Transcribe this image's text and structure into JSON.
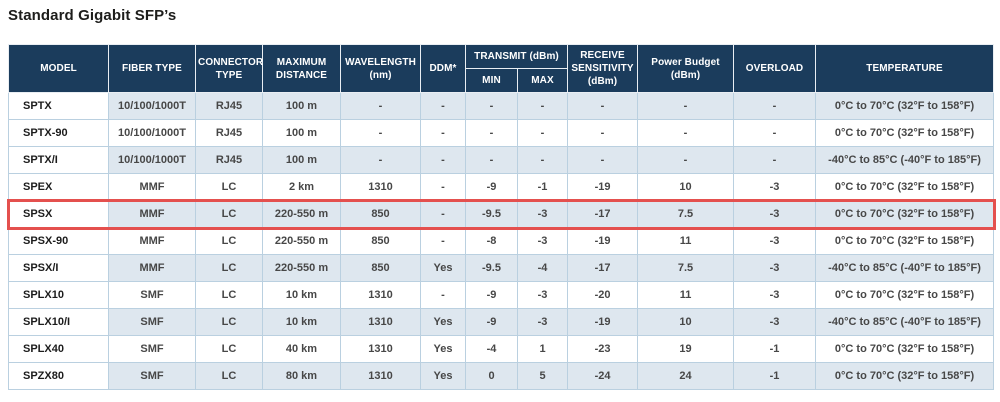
{
  "title": "Standard Gigabit SFP’s",
  "colors": {
    "header_bg": "#1b3c5c",
    "shaded_row_bg": "#dee7ef",
    "cell_border": "#bad0e0",
    "highlight_border": "#e4504e",
    "header_text": "#ffffff",
    "data_text": "#474747"
  },
  "table": {
    "headers": {
      "model": "MODEL",
      "fiber_type": "FIBER TYPE",
      "connector_type": "CONNECTOR TYPE",
      "maximum_distance": "MAXIMUM DISTANCE",
      "wavelength": "WAVELENGTH (nm)",
      "ddm": "DDM*",
      "transmit_group": "TRANSMIT (dBm)",
      "transmit_min": "MIN",
      "transmit_max": "MAX",
      "receive_sensitivity": "RECEIVE SENSITIVITY (dBm)",
      "power_budget": "Power Budget (dBm)",
      "overload": "OVERLOAD",
      "temperature": "TEMPERATURE"
    },
    "rows": [
      {
        "model": "SPTX",
        "fiber_type": "10/100/1000T",
        "connector_type": "RJ45",
        "max_distance": "100 m",
        "wavelength": "-",
        "ddm": "-",
        "tx_min": "-",
        "tx_max": "-",
        "rx_sensitivity": "-",
        "power_budget": "-",
        "overload": "-",
        "temperature": "0°C to 70°C (32°F to 158°F)"
      },
      {
        "model": "SPTX-90",
        "fiber_type": "10/100/1000T",
        "connector_type": "RJ45",
        "max_distance": "100 m",
        "wavelength": "-",
        "ddm": "-",
        "tx_min": "-",
        "tx_max": "-",
        "rx_sensitivity": "-",
        "power_budget": "-",
        "overload": "-",
        "temperature": "0°C to 70°C (32°F to 158°F)"
      },
      {
        "model": "SPTX/I",
        "fiber_type": "10/100/1000T",
        "connector_type": "RJ45",
        "max_distance": "100 m",
        "wavelength": "-",
        "ddm": "-",
        "tx_min": "-",
        "tx_max": "-",
        "rx_sensitivity": "-",
        "power_budget": "-",
        "overload": "-",
        "temperature": "-40°C to 85°C (-40°F to 185°F)"
      },
      {
        "model": "SPEX",
        "fiber_type": "MMF",
        "connector_type": "LC",
        "max_distance": "2 km",
        "wavelength": "1310",
        "ddm": "-",
        "tx_min": "-9",
        "tx_max": "-1",
        "rx_sensitivity": "-19",
        "power_budget": "10",
        "overload": "-3",
        "temperature": "0°C to 70°C (32°F to 158°F)"
      },
      {
        "model": "SPSX",
        "fiber_type": "MMF",
        "connector_type": "LC",
        "max_distance": "220-550 m",
        "wavelength": "850",
        "ddm": "-",
        "tx_min": "-9.5",
        "tx_max": "-3",
        "rx_sensitivity": "-17",
        "power_budget": "7.5",
        "overload": "-3",
        "temperature": "0°C to 70°C (32°F to 158°F)"
      },
      {
        "model": "SPSX-90",
        "fiber_type": "MMF",
        "connector_type": "LC",
        "max_distance": "220-550 m",
        "wavelength": "850",
        "ddm": "-",
        "tx_min": "-8",
        "tx_max": "-3",
        "rx_sensitivity": "-19",
        "power_budget": "11",
        "overload": "-3",
        "temperature": "0°C to 70°C (32°F to 158°F)"
      },
      {
        "model": "SPSX/I",
        "fiber_type": "MMF",
        "connector_type": "LC",
        "max_distance": "220-550 m",
        "wavelength": "850",
        "ddm": "Yes",
        "tx_min": "-9.5",
        "tx_max": "-4",
        "rx_sensitivity": "-17",
        "power_budget": "7.5",
        "overload": "-3",
        "temperature": "-40°C to 85°C (-40°F to 185°F)"
      },
      {
        "model": "SPLX10",
        "fiber_type": "SMF",
        "connector_type": "LC",
        "max_distance": "10 km",
        "wavelength": "1310",
        "ddm": "-",
        "tx_min": "-9",
        "tx_max": "-3",
        "rx_sensitivity": "-20",
        "power_budget": "11",
        "overload": "-3",
        "temperature": "0°C to 70°C (32°F to 158°F)"
      },
      {
        "model": "SPLX10/I",
        "fiber_type": "SMF",
        "connector_type": "LC",
        "max_distance": "10 km",
        "wavelength": "1310",
        "ddm": "Yes",
        "tx_min": "-9",
        "tx_max": "-3",
        "rx_sensitivity": "-19",
        "power_budget": "10",
        "overload": "-3",
        "temperature": "-40°C to 85°C (-40°F to 185°F)"
      },
      {
        "model": "SPLX40",
        "fiber_type": "SMF",
        "connector_type": "LC",
        "max_distance": "40 km",
        "wavelength": "1310",
        "ddm": "Yes",
        "tx_min": "-4",
        "tx_max": "1",
        "rx_sensitivity": "-23",
        "power_budget": "19",
        "overload": "-1",
        "temperature": "0°C to 70°C (32°F to 158°F)"
      },
      {
        "model": "SPZX80",
        "fiber_type": "SMF",
        "connector_type": "LC",
        "max_distance": "80 km",
        "wavelength": "1310",
        "ddm": "Yes",
        "tx_min": "0",
        "tx_max": "5",
        "rx_sensitivity": "-24",
        "power_budget": "24",
        "overload": "-1",
        "temperature": "0°C to 70°C (32°F to 158°F)"
      }
    ]
  },
  "highlight": {
    "model": "SPSX",
    "color": "#e4504e"
  }
}
